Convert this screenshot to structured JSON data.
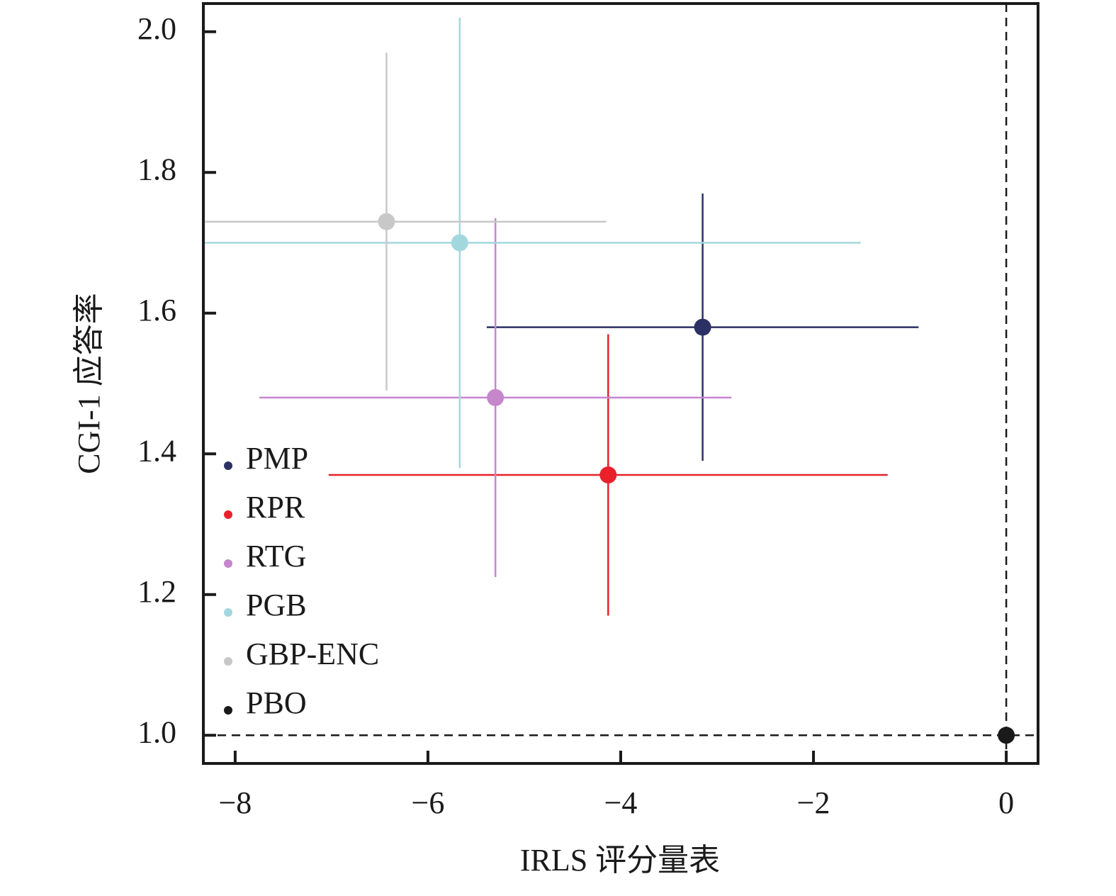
{
  "chart_data": {
    "type": "scatter",
    "x_label": "IRLS 评分量表",
    "y_label": "CGI-1 应答率",
    "xlim": [
      -8.33,
      0.33
    ],
    "ylim": [
      0.96,
      2.04
    ],
    "xticks": [
      {
        "value": -8,
        "label": "−8"
      },
      {
        "value": -6,
        "label": "−6"
      },
      {
        "value": -4,
        "label": "−4"
      },
      {
        "value": -2,
        "label": "−2"
      },
      0
    ],
    "yticks": [
      {
        "value": 1.0,
        "label": "1.0"
      },
      {
        "value": 1.2,
        "label": "1.2"
      },
      {
        "value": 1.4,
        "label": "1.4"
      },
      {
        "value": 1.6,
        "label": "1.6"
      },
      {
        "value": 1.8,
        "label": "1.8"
      },
      {
        "value": 2.0,
        "label": "2.0"
      }
    ],
    "hline": 1.0,
    "vline": 0,
    "legend": "lower left",
    "series": [
      {
        "name": "PMP",
        "color": "#2b3165",
        "x": [
          -3.15
        ],
        "values": [
          1.58
        ],
        "xerr": [
          2.24
        ],
        "yerr": [
          0.19
        ]
      },
      {
        "name": "RPR",
        "color": "#e8212a",
        "x": [
          -4.13
        ],
        "values": [
          1.37
        ],
        "xerr": [
          2.9
        ],
        "yerr": [
          0.2
        ]
      },
      {
        "name": "RTG",
        "color": "#c586cc",
        "x": [
          -5.3
        ],
        "values": [
          1.48
        ],
        "xerr": [
          2.45
        ],
        "yerr": [
          0.255
        ]
      },
      {
        "name": "PGB",
        "color": "#a3d7de",
        "x": [
          -5.67
        ],
        "values": [
          1.7
        ],
        "xerr": [
          4.16
        ],
        "yerr": [
          0.32
        ]
      },
      {
        "name": "GBP-ENC",
        "color": "#c8c8c8",
        "x": [
          -6.43
        ],
        "values": [
          1.73
        ],
        "xerr": [
          2.28
        ],
        "yerr": [
          0.24
        ]
      },
      {
        "name": "PBO",
        "color": "#1a1a1a",
        "x": [
          0
        ],
        "values": [
          1.0
        ]
      }
    ]
  }
}
